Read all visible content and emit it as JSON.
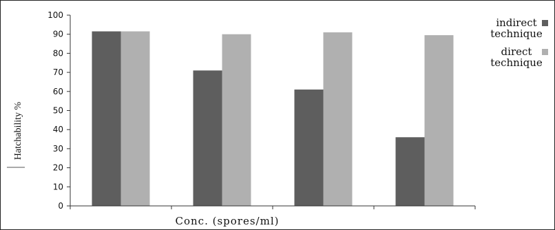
{
  "chart_data": {
    "type": "bar",
    "title": "",
    "xlabel": "Conc. (spores/ml)",
    "ylabel": "Hatchability %",
    "ylim": [
      0,
      100
    ],
    "yticks": [
      0,
      10,
      20,
      30,
      40,
      50,
      60,
      70,
      80,
      90,
      100
    ],
    "grid": false,
    "legend_position": "top-right",
    "categories": [
      "",
      "",
      "",
      ""
    ],
    "series": [
      {
        "name": "indirect technique",
        "legend_lines": [
          "indirect",
          "technique"
        ],
        "color": "#5e5e5e",
        "values": [
          91.5,
          71,
          61,
          36
        ]
      },
      {
        "name": "direct technique",
        "legend_lines": [
          "direct",
          "technique"
        ],
        "color": "#b0b0b0",
        "values": [
          91.5,
          90,
          91,
          89.5
        ]
      }
    ]
  }
}
